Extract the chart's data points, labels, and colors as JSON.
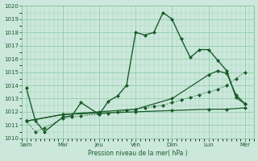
{
  "title": "Pression niveau de la mer( hPa )",
  "bg_color": "#cce8dc",
  "grid_color": "#88c8a0",
  "line_color": "#1a5c2a",
  "ylim": [
    1010,
    1020
  ],
  "yticks": [
    1010,
    1011,
    1012,
    1013,
    1014,
    1015,
    1016,
    1017,
    1018,
    1019,
    1020
  ],
  "xtick_labels": [
    "Sam",
    "Mar",
    "Jeu",
    "Ven",
    "Dim",
    "Lun",
    "Mer"
  ],
  "xtick_positions": [
    0,
    8,
    16,
    24,
    32,
    40,
    48
  ],
  "xlim": [
    -1,
    50
  ],
  "series": [
    {
      "x": [
        0,
        2,
        4,
        8,
        10,
        12,
        16,
        18,
        20,
        22,
        24,
        26,
        28,
        30,
        32,
        34,
        36,
        38,
        40,
        42,
        44,
        46,
        48
      ],
      "y": [
        1013.8,
        1011.3,
        1010.5,
        1011.6,
        1011.7,
        1012.7,
        1011.8,
        1012.8,
        1013.2,
        1014.0,
        1018.0,
        1017.8,
        1018.0,
        1019.5,
        1019.0,
        1017.5,
        1016.1,
        1016.7,
        1016.7,
        1015.9,
        1015.1,
        1013.1,
        1012.6
      ],
      "style": "-",
      "marker": "D",
      "markersize": 2.0,
      "linewidth": 1.0
    },
    {
      "x": [
        0,
        2,
        4,
        8,
        10,
        12,
        16,
        18,
        20,
        22,
        24,
        26,
        28,
        30,
        32,
        34,
        36,
        38,
        40,
        42,
        44,
        46,
        48
      ],
      "y": [
        1011.3,
        1010.5,
        1010.8,
        1011.5,
        1011.6,
        1011.7,
        1011.8,
        1011.9,
        1012.0,
        1012.1,
        1012.2,
        1012.3,
        1012.4,
        1012.5,
        1012.7,
        1012.9,
        1013.1,
        1013.3,
        1013.5,
        1013.7,
        1014.0,
        1014.5,
        1015.0
      ],
      "style": ":",
      "marker": "D",
      "markersize": 2.0,
      "linewidth": 0.8
    },
    {
      "x": [
        0,
        8,
        16,
        24,
        32,
        40,
        42,
        44,
        46,
        48
      ],
      "y": [
        1011.3,
        1011.8,
        1012.0,
        1012.2,
        1013.0,
        1014.8,
        1015.1,
        1014.9,
        1013.3,
        1012.6
      ],
      "style": "-",
      "marker": "D",
      "markersize": 2.0,
      "linewidth": 0.9
    },
    {
      "x": [
        0,
        8,
        16,
        24,
        32,
        40,
        44,
        48
      ],
      "y": [
        1011.3,
        1011.8,
        1011.9,
        1012.0,
        1012.1,
        1012.2,
        1012.2,
        1012.3
      ],
      "style": "-",
      "marker": "D",
      "markersize": 2.0,
      "linewidth": 0.9
    }
  ]
}
